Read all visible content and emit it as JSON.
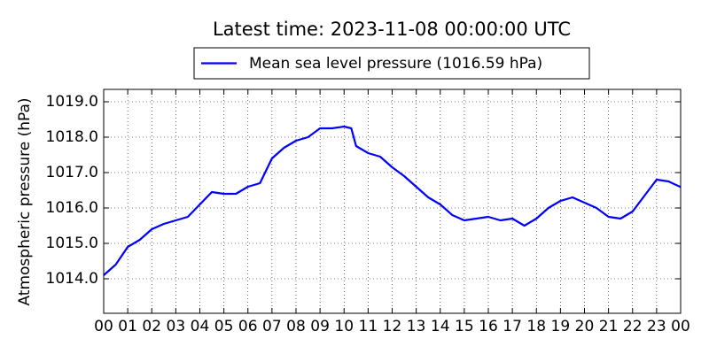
{
  "chart_data": {
    "type": "line",
    "title": "Latest time: 2023-11-08 00:00:00 UTC",
    "y_label": "Atmospheric pressure (hPa)",
    "x": [
      0,
      0.5,
      1,
      1.5,
      2,
      2.5,
      3,
      3.5,
      4,
      4.5,
      5,
      5.5,
      6,
      6.5,
      7,
      7.5,
      8,
      8.5,
      9,
      9.5,
      10,
      10.3,
      10.5,
      11,
      11.5,
      12,
      12.5,
      13,
      13.5,
      14,
      14.5,
      15,
      15.5,
      16,
      16.5,
      17,
      17.5,
      18,
      18.5,
      19,
      19.5,
      20,
      20.5,
      21,
      21.5,
      22,
      22.5,
      23,
      23.5,
      24
    ],
    "series": [
      {
        "name": "Mean sea level pressure (1016.59 hPa)",
        "color": "#0000ff",
        "values": [
          1014.1,
          1014.4,
          1014.9,
          1015.1,
          1015.4,
          1015.55,
          1015.65,
          1015.75,
          1016.1,
          1016.45,
          1016.4,
          1016.4,
          1016.6,
          1016.7,
          1017.4,
          1017.7,
          1017.9,
          1018.0,
          1018.25,
          1018.25,
          1018.3,
          1018.25,
          1017.75,
          1017.55,
          1017.45,
          1017.15,
          1016.9,
          1016.6,
          1016.3,
          1016.1,
          1015.8,
          1015.65,
          1015.7,
          1015.75,
          1015.65,
          1015.7,
          1015.5,
          1015.7,
          1016.0,
          1016.2,
          1016.3,
          1016.15,
          1016.0,
          1015.75,
          1015.7,
          1015.9,
          1016.35,
          1016.8,
          1016.75,
          1016.59
        ]
      }
    ],
    "xlim": [
      0,
      24
    ],
    "xticks": [
      {
        "value": 0,
        "label": "00"
      },
      {
        "value": 1,
        "label": "01"
      },
      {
        "value": 2,
        "label": "02"
      },
      {
        "value": 3,
        "label": "03"
      },
      {
        "value": 4,
        "label": "04"
      },
      {
        "value": 5,
        "label": "05"
      },
      {
        "value": 6,
        "label": "06"
      },
      {
        "value": 7,
        "label": "07"
      },
      {
        "value": 8,
        "label": "08"
      },
      {
        "value": 9,
        "label": "09"
      },
      {
        "value": 10,
        "label": "10"
      },
      {
        "value": 11,
        "label": "11"
      },
      {
        "value": 12,
        "label": "12"
      },
      {
        "value": 13,
        "label": "13"
      },
      {
        "value": 14,
        "label": "14"
      },
      {
        "value": 15,
        "label": "15"
      },
      {
        "value": 16,
        "label": "16"
      },
      {
        "value": 17,
        "label": "17"
      },
      {
        "value": 18,
        "label": "18"
      },
      {
        "value": 19,
        "label": "19"
      },
      {
        "value": 20,
        "label": "20"
      },
      {
        "value": 21,
        "label": "21"
      },
      {
        "value": 22,
        "label": "22"
      },
      {
        "value": 23,
        "label": "23"
      },
      {
        "value": 24,
        "label": "00"
      }
    ],
    "ylim": [
      1013.025,
      1019.35
    ],
    "yticks": [
      {
        "value": 1014,
        "label": "1014.0"
      },
      {
        "value": 1015,
        "label": "1015.0"
      },
      {
        "value": 1016,
        "label": "1016.0"
      },
      {
        "value": 1017,
        "label": "1017.0"
      },
      {
        "value": 1018,
        "label": "1018.0"
      },
      {
        "value": 1019,
        "label": "1019.0"
      }
    ],
    "grid": true,
    "legend": "top"
  }
}
